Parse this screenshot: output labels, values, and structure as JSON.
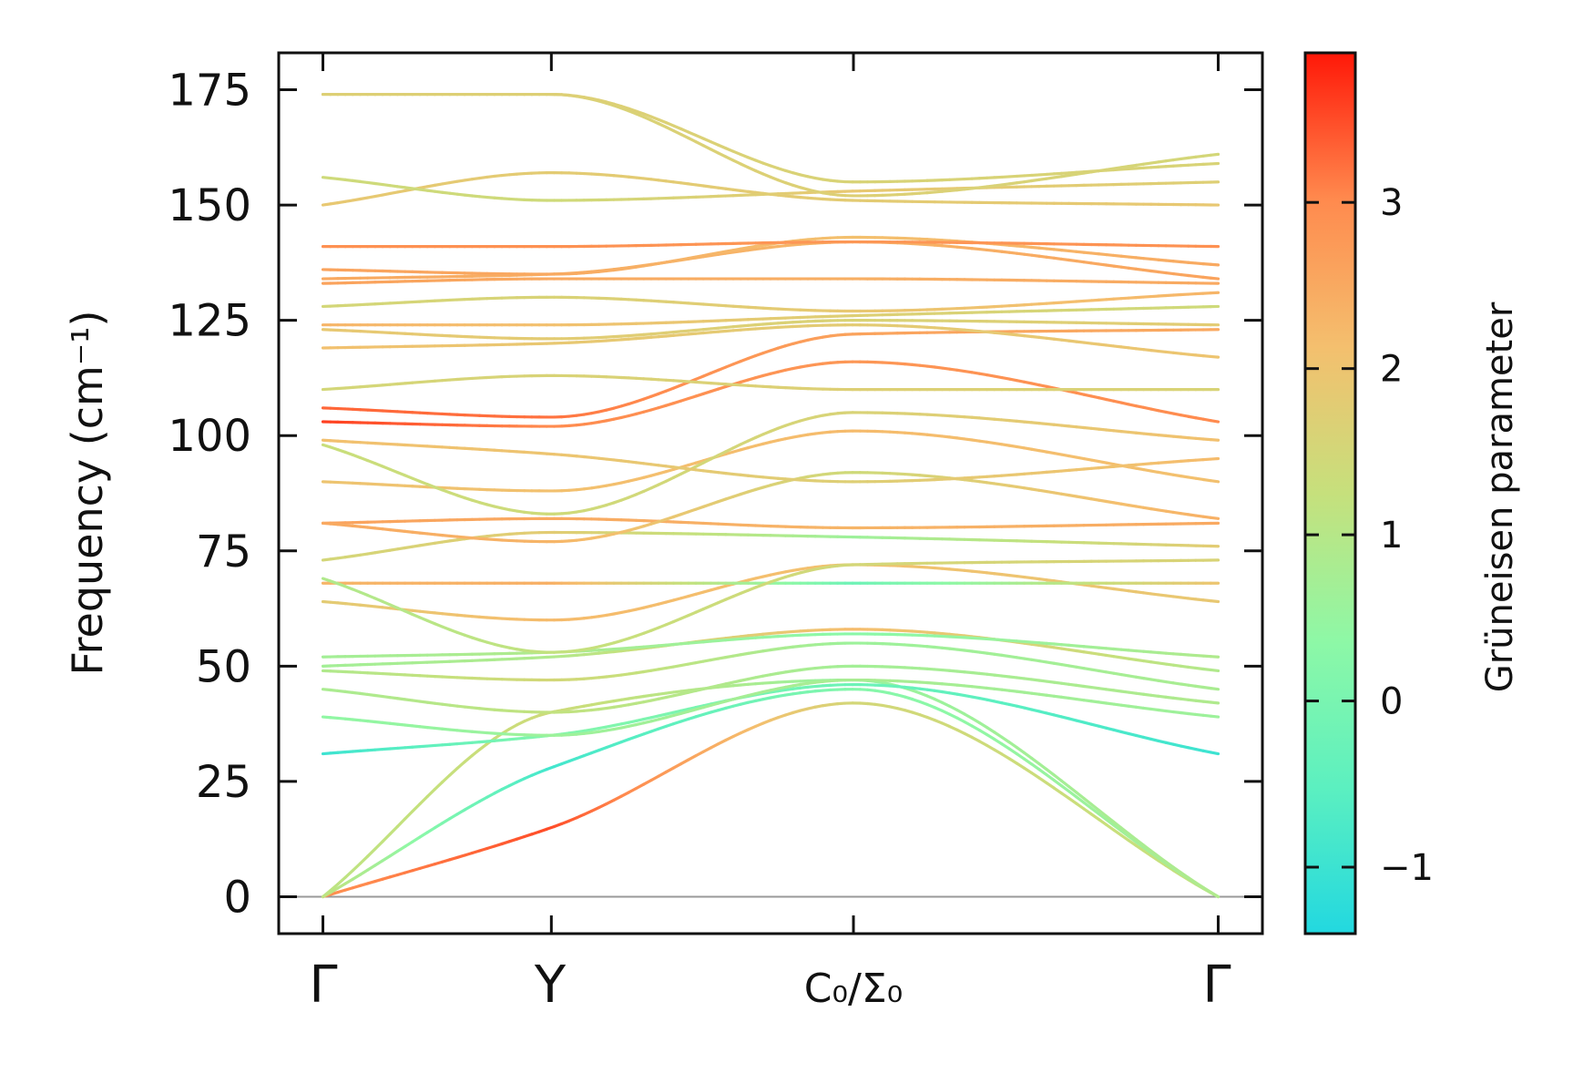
{
  "chart_data": {
    "type": "line",
    "title": "",
    "xlabel": "",
    "ylabel": "Frequency (cm⁻¹)",
    "ylim": [
      -8,
      183
    ],
    "yticks": [
      0,
      25,
      50,
      75,
      100,
      125,
      150,
      175
    ],
    "ytick_labels": [
      "0",
      "25",
      "50",
      "75",
      "100",
      "125",
      "150",
      "175"
    ],
    "x_range": [
      -0.12,
      2.55
    ],
    "high_symmetry_points": [
      {
        "label": "Γ",
        "x": 0
      },
      {
        "label": "Y",
        "x": 0.62
      },
      {
        "label": "C₀/Σ₀",
        "x": 1.44
      },
      {
        "label": "Γ",
        "x": 2.43
      }
    ],
    "colorbar": {
      "label": "Grüneisen parameter",
      "range": [
        -1.4,
        3.9
      ],
      "ticks": [
        -1,
        0,
        1,
        2,
        3
      ],
      "tick_labels": [
        "−1",
        "0",
        "1",
        "2",
        "3"
      ],
      "colormap": [
        "#22d8e0",
        "#5cf0c0",
        "#8ef8a6",
        "#c6e07c",
        "#f4bf6e",
        "#ff8a4e",
        "#ff1808"
      ]
    },
    "zero_line": {
      "y": 0,
      "color": "#999999"
    },
    "series": [
      {
        "name": "band-1",
        "x": [
          0,
          0.62,
          1.44,
          2.43
        ],
        "y": [
          0,
          15,
          42,
          0
        ],
        "g": [
          2.9,
          3.5,
          1.5,
          1.2
        ]
      },
      {
        "name": "band-2",
        "x": [
          0,
          0.62,
          1.44,
          2.43
        ],
        "y": [
          0,
          28,
          45,
          0
        ],
        "g": [
          1.2,
          -0.9,
          0.2,
          0.8
        ]
      },
      {
        "name": "band-3",
        "x": [
          0,
          0.62,
          1.44,
          2.43
        ],
        "y": [
          0,
          40,
          47,
          0
        ],
        "g": [
          1.1,
          1.4,
          0.5,
          0.9
        ]
      },
      {
        "name": "band-4",
        "x": [
          0,
          0.62,
          1.44,
          2.43
        ],
        "y": [
          31,
          35,
          46,
          31
        ],
        "g": [
          -1.0,
          0.2,
          -0.2,
          -1.0
        ]
      },
      {
        "name": "band-5",
        "x": [
          0,
          0.62,
          1.44,
          2.43
        ],
        "y": [
          39,
          35,
          47,
          39
        ],
        "g": [
          0.4,
          0.6,
          0.8,
          0.6
        ]
      },
      {
        "name": "band-6",
        "x": [
          0,
          0.62,
          1.44,
          2.43
        ],
        "y": [
          45,
          40,
          50,
          42
        ],
        "g": [
          0.8,
          1.2,
          0.7,
          0.9
        ]
      },
      {
        "name": "band-7",
        "x": [
          0,
          0.62,
          1.44,
          2.43
        ],
        "y": [
          49,
          47,
          55,
          45
        ],
        "g": [
          0.9,
          1.5,
          0.6,
          0.8
        ]
      },
      {
        "name": "band-8",
        "x": [
          0,
          0.62,
          1.44,
          2.43
        ],
        "y": [
          50,
          52,
          58,
          49
        ],
        "g": [
          0.7,
          0.9,
          2.2,
          0.9
        ]
      },
      {
        "name": "band-9",
        "x": [
          0,
          0.62,
          1.44,
          2.43
        ],
        "y": [
          52,
          53,
          57,
          52
        ],
        "g": [
          0.7,
          0.9,
          0.3,
          0.9
        ]
      },
      {
        "name": "band-10",
        "x": [
          0,
          0.62,
          1.44,
          2.43
        ],
        "y": [
          64,
          60,
          72,
          64
        ],
        "g": [
          1.8,
          2.2,
          2.1,
          1.9
        ]
      },
      {
        "name": "band-11",
        "x": [
          0,
          0.62,
          1.44,
          2.43
        ],
        "y": [
          68,
          68,
          68,
          68
        ],
        "g": [
          2.3,
          2.4,
          -0.2,
          2.0
        ]
      },
      {
        "name": "band-12",
        "x": [
          0,
          0.62,
          1.44,
          2.43
        ],
        "y": [
          69,
          53,
          72,
          73
        ],
        "g": [
          0.9,
          1.2,
          1.5,
          1.6
        ]
      },
      {
        "name": "band-13",
        "x": [
          0,
          0.62,
          1.44,
          2.43
        ],
        "y": [
          73,
          79,
          78,
          76
        ],
        "g": [
          1.5,
          1.8,
          0.6,
          1.8
        ]
      },
      {
        "name": "band-14",
        "x": [
          0,
          0.62,
          1.44,
          2.43
        ],
        "y": [
          81,
          82,
          80,
          81
        ],
        "g": [
          2.6,
          2.5,
          2.3,
          2.5
        ]
      },
      {
        "name": "band-15",
        "x": [
          0,
          0.62,
          1.44,
          2.43
        ],
        "y": [
          81,
          77,
          92,
          82
        ],
        "g": [
          2.5,
          2.3,
          1.4,
          2.4
        ]
      },
      {
        "name": "band-16",
        "x": [
          0,
          0.62,
          1.44,
          2.43
        ],
        "y": [
          90,
          88,
          101,
          90
        ],
        "g": [
          2.0,
          2.1,
          2.2,
          2.1
        ]
      },
      {
        "name": "band-17",
        "x": [
          0,
          0.62,
          1.44,
          2.43
        ],
        "y": [
          98,
          83,
          105,
          99
        ],
        "g": [
          1.3,
          1.4,
          1.6,
          2.1
        ]
      },
      {
        "name": "band-18",
        "x": [
          0,
          0.62,
          1.44,
          2.43
        ],
        "y": [
          99,
          96,
          90,
          95
        ],
        "g": [
          2.1,
          2.0,
          1.7,
          2.2
        ]
      },
      {
        "name": "band-19",
        "x": [
          0,
          0.62,
          1.44,
          2.43
        ],
        "y": [
          103,
          102,
          116,
          103
        ],
        "g": [
          3.6,
          3.0,
          2.8,
          3.0
        ]
      },
      {
        "name": "band-20",
        "x": [
          0,
          0.62,
          1.44,
          2.43
        ],
        "y": [
          106,
          104,
          122,
          123
        ],
        "g": [
          3.3,
          3.2,
          2.6,
          2.5
        ]
      },
      {
        "name": "band-21",
        "x": [
          0,
          0.62,
          1.44,
          2.43
        ],
        "y": [
          110,
          113,
          110,
          110
        ],
        "g": [
          1.5,
          1.6,
          1.7,
          1.6
        ]
      },
      {
        "name": "band-22",
        "x": [
          0,
          0.62,
          1.44,
          2.43
        ],
        "y": [
          119,
          120,
          124,
          117
        ],
        "g": [
          2.1,
          1.9,
          1.8,
          2.0
        ]
      },
      {
        "name": "band-23",
        "x": [
          0,
          0.62,
          1.44,
          2.43
        ],
        "y": [
          123,
          121,
          125,
          124
        ],
        "g": [
          1.9,
          1.8,
          1.6,
          1.8
        ]
      },
      {
        "name": "band-24",
        "x": [
          0,
          0.62,
          1.44,
          2.43
        ],
        "y": [
          124,
          124,
          126,
          128
        ],
        "g": [
          2.3,
          2.1,
          1.7,
          1.4
        ]
      },
      {
        "name": "band-25",
        "x": [
          0,
          0.62,
          1.44,
          2.43
        ],
        "y": [
          128,
          130,
          127,
          131
        ],
        "g": [
          1.5,
          1.6,
          1.9,
          2.3
        ]
      },
      {
        "name": "band-26",
        "x": [
          0,
          0.62,
          1.44,
          2.43
        ],
        "y": [
          133,
          134,
          134,
          133
        ],
        "g": [
          2.6,
          2.5,
          2.4,
          2.5
        ]
      },
      {
        "name": "band-27",
        "x": [
          0,
          0.62,
          1.44,
          2.43
        ],
        "y": [
          134,
          135,
          142,
          134
        ],
        "g": [
          2.5,
          2.4,
          2.3,
          2.6
        ]
      },
      {
        "name": "band-28",
        "x": [
          0,
          0.62,
          1.44,
          2.43
        ],
        "y": [
          136,
          135,
          143,
          137
        ],
        "g": [
          2.6,
          2.5,
          2.1,
          2.5
        ]
      },
      {
        "name": "band-29",
        "x": [
          0,
          0.62,
          1.44,
          2.43
        ],
        "y": [
          141,
          141,
          142,
          141
        ],
        "g": [
          2.9,
          2.9,
          2.8,
          2.9
        ]
      },
      {
        "name": "band-30",
        "x": [
          0,
          0.62,
          1.44,
          2.43
        ],
        "y": [
          150,
          157,
          151,
          150
        ],
        "g": [
          1.9,
          1.8,
          1.8,
          1.9
        ]
      },
      {
        "name": "band-31",
        "x": [
          0,
          0.62,
          1.44,
          2.43
        ],
        "y": [
          156,
          151,
          153,
          155
        ],
        "g": [
          1.4,
          1.4,
          1.9,
          1.7
        ]
      },
      {
        "name": "band-32",
        "x": [
          0,
          0.62,
          1.44,
          2.43
        ],
        "y": [
          174,
          174,
          152,
          161
        ],
        "g": [
          1.6,
          1.6,
          1.7,
          1.5
        ]
      },
      {
        "name": "band-33",
        "x": [
          0,
          0.62,
          1.44,
          2.43
        ],
        "y": [
          174,
          174,
          155,
          159
        ],
        "g": [
          1.7,
          1.7,
          1.6,
          1.6
        ]
      }
    ]
  }
}
